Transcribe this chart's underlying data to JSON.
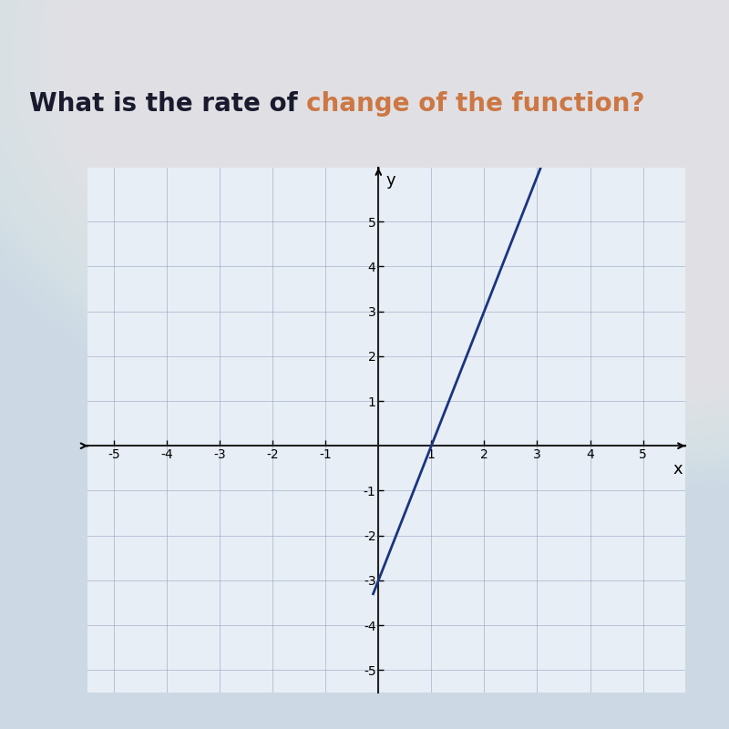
{
  "title_black": "What is the rate of ",
  "title_orange": "change of the function?",
  "title_black_color": "#1a1a2e",
  "title_orange_color": "#cc7744",
  "title_fontsize": 20,
  "xlim": [
    -5.5,
    5.8
  ],
  "ylim": [
    -5.5,
    6.2
  ],
  "xticks": [
    -5,
    -4,
    -3,
    -2,
    -1,
    1,
    2,
    3,
    4,
    5
  ],
  "yticks": [
    -5,
    -4,
    -3,
    -2,
    -1,
    1,
    2,
    3,
    4,
    5
  ],
  "slope": 3,
  "intercept": -3,
  "line_color": "#1a3580",
  "line_x_start": -0.1,
  "line_x_end": 3.5,
  "grid_color": "#8899bb",
  "grid_alpha": 0.5,
  "bg_color_top": "#dde8f0",
  "bg_color_bottom": "#e8eef5",
  "axis_color": "#222222",
  "tick_fontsize": 11,
  "chart_area_color": "#f0f4f8"
}
